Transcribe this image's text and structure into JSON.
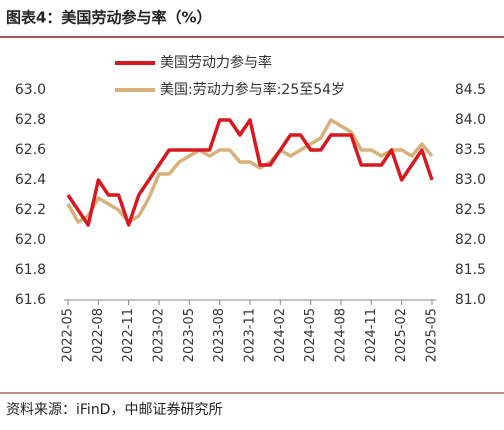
{
  "chart_data": {
    "type": "line",
    "title": "图表4：美国劳动参与率（%）",
    "source": "资料来源：iFinD，中邮证券研究所",
    "categories": [
      "2022-05",
      null,
      null,
      "2022-08",
      null,
      null,
      "2022-11",
      null,
      null,
      "2023-02",
      null,
      null,
      "2023-05",
      null,
      null,
      "2023-08",
      null,
      null,
      "2023-11",
      null,
      null,
      "2024-02",
      null,
      null,
      "2024-05",
      null,
      null,
      "2024-08",
      null,
      null,
      "2024-11",
      null,
      null,
      "2025-02",
      null,
      null,
      "2025-05"
    ],
    "series": [
      {
        "name": "美国劳动力参与率",
        "color": "#d7181f",
        "values": [
          62.3,
          62.2,
          62.1,
          62.4,
          62.3,
          62.3,
          62.1,
          62.3,
          62.4,
          62.5,
          62.6,
          62.6,
          62.6,
          62.6,
          62.6,
          62.8,
          62.8,
          62.7,
          62.8,
          62.5,
          62.5,
          62.6,
          62.7,
          62.7,
          62.6,
          62.6,
          62.7,
          62.7,
          62.7,
          62.5,
          62.5,
          62.5,
          62.6,
          62.4,
          62.5,
          62.6,
          62.4
        ]
      },
      {
        "name": "美国:劳动力参与率:25至54岁",
        "color": "#d8b07a",
        "axis": "y2",
        "values": [
          82.6,
          82.3,
          82.4,
          82.7,
          82.6,
          82.5,
          82.3,
          82.4,
          82.7,
          83.1,
          83.1,
          83.3,
          83.4,
          83.5,
          83.4,
          83.5,
          83.5,
          83.3,
          83.3,
          83.2,
          83.3,
          83.5,
          83.4,
          83.5,
          83.6,
          83.7,
          84.0,
          83.9,
          83.8,
          83.5,
          83.5,
          83.4,
          83.5,
          83.5,
          83.4,
          83.6,
          83.4
        ]
      }
    ],
    "ylim": [
      61.6,
      63.0
    ],
    "yticks": [
      61.6,
      61.8,
      {
        "value": 62.0,
        "label": "62.0"
      },
      62.2,
      62.4,
      62.6,
      62.8,
      {
        "value": 63.0,
        "label": "63.0"
      }
    ],
    "y2lim": [
      81.0,
      84.5
    ],
    "y2ticks": [
      {
        "value": 81.0,
        "label": "81.0"
      },
      81.5,
      {
        "value": 82.0,
        "label": "82.0"
      },
      82.5,
      {
        "value": 83.0,
        "label": "83.0"
      },
      83.5,
      {
        "value": 84.0,
        "label": "84.0"
      },
      84.5
    ]
  }
}
